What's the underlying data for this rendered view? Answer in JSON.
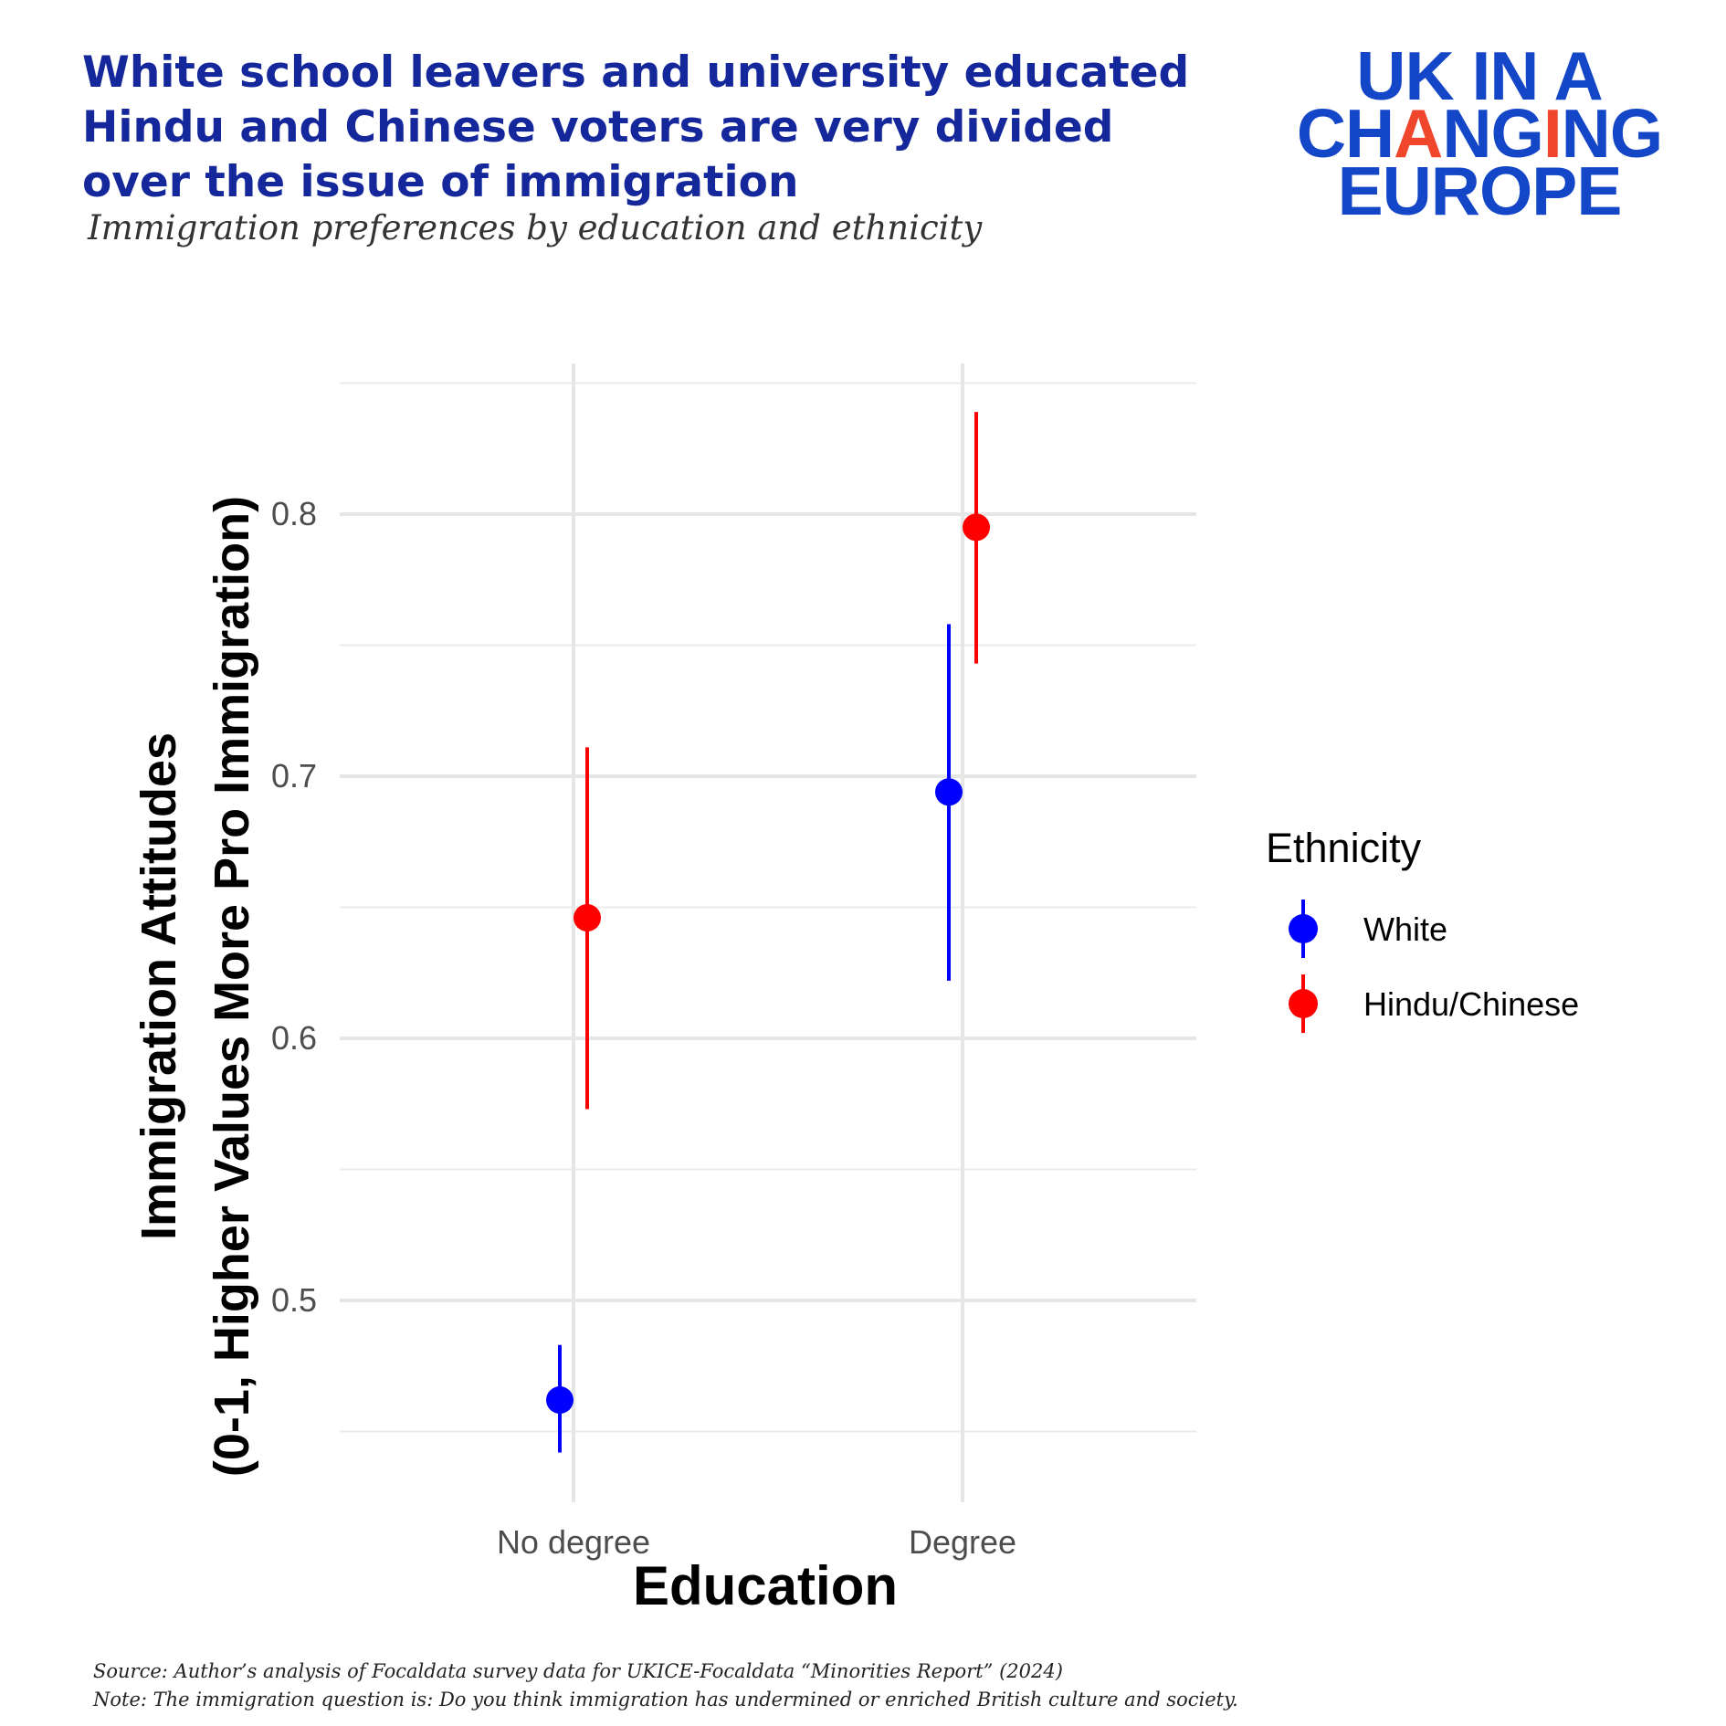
{
  "header": {
    "title": "White school leavers and university educated Hindu and Chinese voters are very divided over the issue of immigration",
    "subtitle": "Immigration preferences by education and ethnicity"
  },
  "logo": {
    "line1": "UK IN A",
    "line2_pre": "CH",
    "line2_a": "A",
    "line2_mid": "NG",
    "line2_i": "I",
    "line2_post": "NG",
    "line3": "EUROPE",
    "brand_color": "#1446c8",
    "accent_color": "#f0462b"
  },
  "chart_data": {
    "type": "scatter",
    "subtype": "point-range",
    "xlabel": "Education",
    "ylabel_line1": "Immigration Attitudes",
    "ylabel_line2": "(0-1, Higher Values More Pro Immigration)",
    "categories": [
      "No degree",
      "Degree"
    ],
    "yticks": [
      0.5,
      0.6,
      0.7,
      0.8
    ],
    "ytick_labels": [
      "0.5",
      "0.6",
      "0.7",
      "0.8"
    ],
    "ylim": [
      0.41,
      0.855
    ],
    "grid": true,
    "legend": {
      "title": "Ethnicity",
      "position": "right"
    },
    "series": [
      {
        "name": "White",
        "color": "#0000ff",
        "values": [
          0.462,
          0.694
        ],
        "lower": [
          0.442,
          0.622
        ],
        "upper": [
          0.483,
          0.758
        ]
      },
      {
        "name": "Hindu/Chinese",
        "color": "#ff0000",
        "values": [
          0.646,
          0.795
        ],
        "lower": [
          0.573,
          0.743
        ],
        "upper": [
          0.711,
          0.839
        ]
      }
    ]
  },
  "footer": {
    "source": "Source: Author’s analysis of Focaldata survey data for UKICE-Focaldata “Minorities Report” (2024)",
    "note": "Note:  The immigration question is: Do you think immigration has undermined or enriched British culture and society."
  }
}
